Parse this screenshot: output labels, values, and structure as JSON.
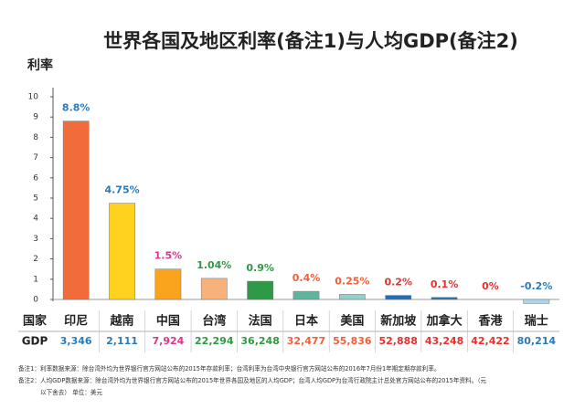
{
  "chart_data": {
    "type": "bar",
    "title": "世界各国及地区利率(备注1)与人均GDP(备注2)",
    "y_label": "利率",
    "categories": [
      "印尼",
      "越南",
      "中国",
      "台湾",
      "法国",
      "日本",
      "美国",
      "新加坡",
      "加拿大",
      "香港",
      "瑞士"
    ],
    "values": [
      8.8,
      4.75,
      1.5,
      1.04,
      0.9,
      0.4,
      0.25,
      0.2,
      0.1,
      0,
      -0.2
    ],
    "value_labels": [
      "8.8%",
      "4.75%",
      "1.5%",
      "1.04%",
      "0.9%",
      "0.4%",
      "0.25%",
      "0.2%",
      "0.1%",
      "0%",
      "-0.2%"
    ],
    "colors": [
      "#f26b3a",
      "#ffd21f",
      "#f9a41c",
      "#f7b27a",
      "#2f9a45",
      "#5fb4a0",
      "#8fd3c8",
      "#1f6fb5",
      "#2d6fa0",
      "#ffffff",
      "#a9d8ee"
    ],
    "label_colors": [
      "#2b7bb9",
      "#2b7bb9",
      "#d9368c",
      "#2f9a45",
      "#2f9a45",
      "#f0603a",
      "#f0603a",
      "#e8302e",
      "#e8302e",
      "#e8302e",
      "#2b7bb9"
    ],
    "ylim": [
      0,
      10
    ],
    "yticks": [
      0,
      1,
      2,
      3,
      4,
      5,
      6,
      7,
      8,
      9,
      10
    ],
    "row_header": "国家",
    "gdp_label": "GDP",
    "gdp": [
      3346,
      2111,
      7924,
      22294,
      36248,
      32477,
      55836,
      52888,
      43248,
      42422,
      80214
    ],
    "gdp_labels": [
      "3,346",
      "2,111",
      "7,924",
      "22,294",
      "36,248",
      "32,477",
      "55,836",
      "52,888",
      "43,248",
      "42,422",
      "80,214"
    ],
    "notes": [
      "备注1：利率数据来源：除台湾外均为世界银行官方网站公布的2015年存款利率；台湾利率为台湾中央银行官方网站公布的2016年7月份1年期定期存款利率。",
      "备注2：人均GDP数据来源：除台湾外均为世界银行官方网站公布的2015年世界各国及地区的人均GDP；台湾人均GDP为台湾行政院主计总处官方网站公布的2015年资料。（元",
      "以下舍去） 单位：美元"
    ]
  }
}
